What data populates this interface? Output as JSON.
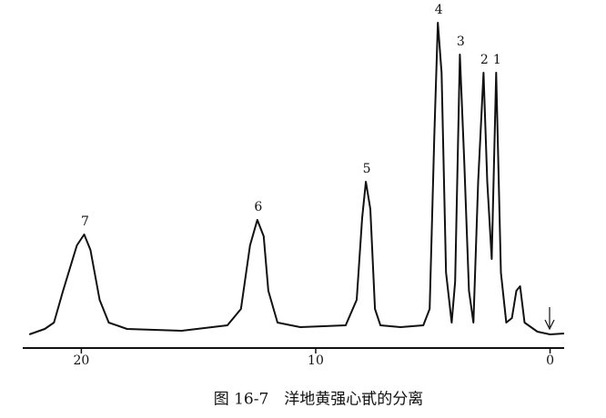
{
  "chart_data": {
    "type": "line",
    "caption": "图 16-7　洋地黄强心甙的分离",
    "x": [
      22.22,
      21.56,
      21.17,
      20.78,
      20.19,
      19.88,
      19.61,
      19.22,
      18.83,
      18.05,
      15.72,
      13.77,
      13.19,
      12.8,
      12.49,
      12.22,
      12.02,
      11.63,
      10.66,
      8.72,
      8.25,
      8.02,
      7.86,
      7.67,
      7.47,
      7.24,
      6.38,
      5.41,
      5.14,
      4.94,
      4.79,
      4.63,
      4.44,
      4.2,
      4.05,
      3.85,
      3.66,
      3.46,
      3.27,
      3.07,
      2.84,
      2.68,
      2.49,
      2.3,
      2.1,
      1.87,
      1.63,
      1.44,
      1.28,
      1.09,
      0.54,
      0,
      -0.6
    ],
    "series": [
      {
        "color": "#111111",
        "values": [
          15,
          21,
          28,
          63,
          113,
          125,
          108,
          53,
          28,
          21,
          19,
          25,
          43,
          113,
          141,
          123,
          63,
          28,
          23,
          25,
          53,
          143,
          183,
          153,
          43,
          25,
          23,
          25,
          43,
          233,
          358,
          303,
          83,
          28,
          73,
          323,
          203,
          63,
          28,
          183,
          303,
          183,
          98,
          303,
          83,
          28,
          33,
          63,
          68,
          28,
          18,
          15,
          16
        ]
      }
    ],
    "annotations": [
      {
        "label": "7",
        "x": 19.88,
        "y": 125
      },
      {
        "label": "6",
        "x": 12.49,
        "y": 141
      },
      {
        "label": "5",
        "x": 7.86,
        "y": 183
      },
      {
        "label": "4",
        "x": 4.79,
        "y": 358
      },
      {
        "label": "3",
        "x": 3.85,
        "y": 323
      },
      {
        "label": "2",
        "x": 2.84,
        "y": 303
      },
      {
        "label": "1",
        "x": 2.3,
        "y": 303
      }
    ],
    "xlim": [
      22.5,
      -0.6
    ],
    "xticks": [
      20,
      10,
      0
    ],
    "ylim": [
      0,
      370
    ]
  }
}
